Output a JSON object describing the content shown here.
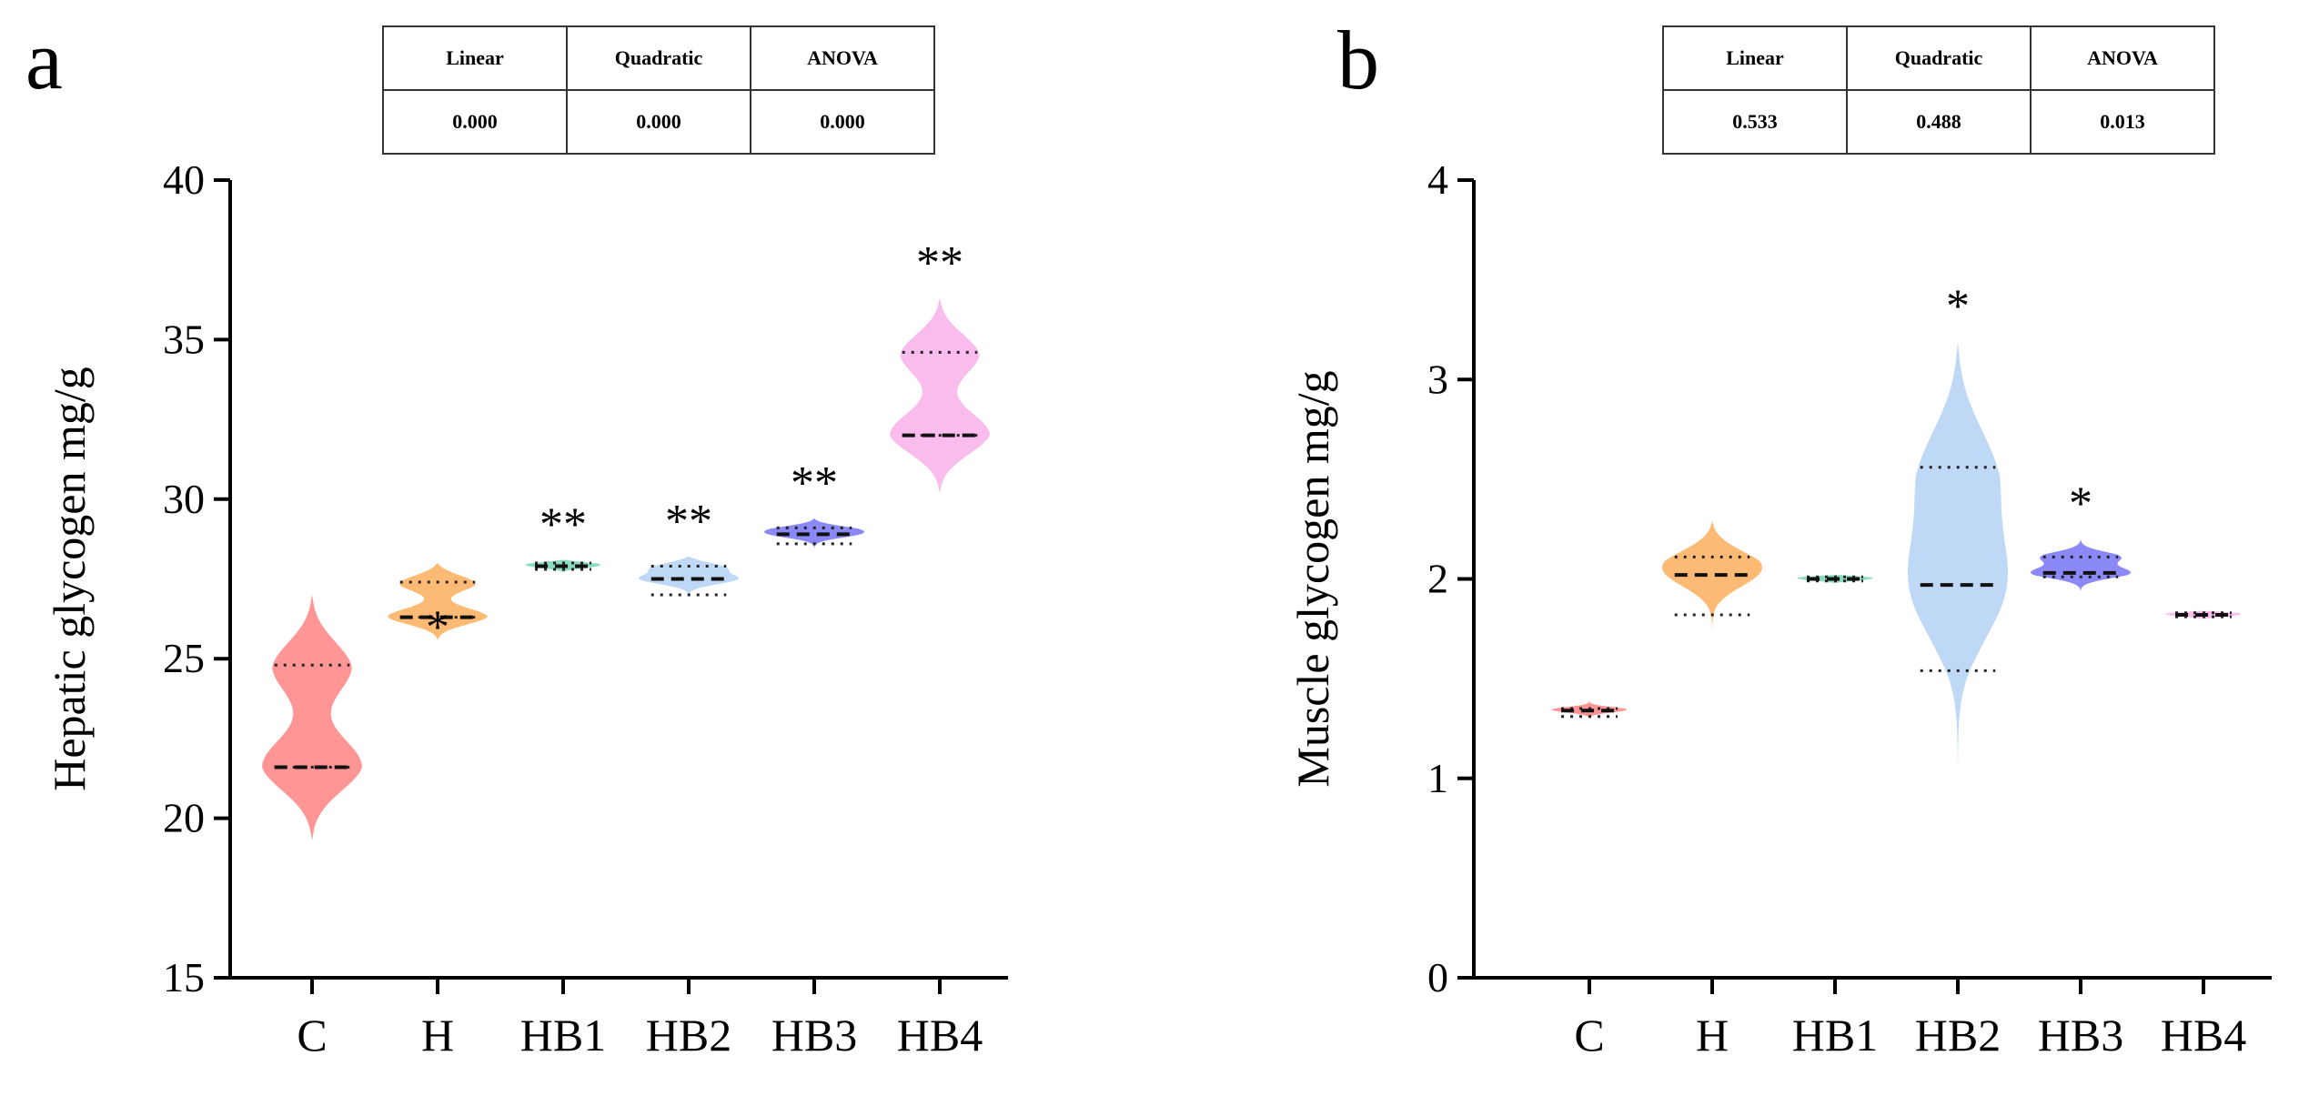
{
  "colors": {
    "C": "#ff8a8a",
    "H": "#fdb366",
    "HB1": "#7fd6ba",
    "HB2": "#b7d4f5",
    "HB3": "#7d7cf6",
    "HB4": "#f9b5ea",
    "axis": "#000000"
  },
  "panels": {
    "a": {
      "letter": "a",
      "stats": {
        "headers": [
          "Linear",
          "Quadratic",
          "ANOVA"
        ],
        "values": [
          "0.000",
          "0.000",
          "0.000"
        ]
      }
    },
    "b": {
      "letter": "b",
      "stats": {
        "headers": [
          "Linear",
          "Quadratic",
          "ANOVA"
        ],
        "values": [
          "0.533",
          "0.488",
          "0.013"
        ]
      }
    }
  },
  "chart_data": [
    {
      "type": "violin",
      "title": "",
      "xlabel": "",
      "ylabel": "Hepatic glycogen  mg/g",
      "categories": [
        "C",
        "H",
        "HB1",
        "HB2",
        "HB3",
        "HB4"
      ],
      "ylim": [
        15,
        40
      ],
      "yticks": [
        "15",
        "20",
        "25",
        "30",
        "35",
        "40"
      ],
      "violins": [
        {
          "group": "C",
          "min": 19.3,
          "max": 27.0,
          "median": 21.6,
          "q1": 21.6,
          "q3": 24.8,
          "significance": ""
        },
        {
          "group": "H",
          "min": 25.6,
          "max": 28.0,
          "median": 26.3,
          "q1": 26.3,
          "q3": 27.4,
          "significance": "*"
        },
        {
          "group": "HB1",
          "min": 27.7,
          "max": 28.1,
          "median": 27.9,
          "q1": 27.8,
          "q3": 28.0,
          "significance": "**"
        },
        {
          "group": "HB2",
          "min": 26.8,
          "max": 28.2,
          "median": 27.5,
          "q1": 27.0,
          "q3": 27.9,
          "significance": "**"
        },
        {
          "group": "HB3",
          "min": 28.3,
          "max": 29.4,
          "median": 28.9,
          "q1": 28.6,
          "q3": 29.1,
          "significance": "**"
        },
        {
          "group": "HB4",
          "min": 30.2,
          "max": 36.3,
          "median": 32.0,
          "q1": 32.0,
          "q3": 34.6,
          "significance": "**"
        }
      ]
    },
    {
      "type": "violin",
      "title": "",
      "xlabel": "",
      "ylabel": "Muscle glycogen  mg/g",
      "categories": [
        "C",
        "H",
        "HB1",
        "HB2",
        "HB3",
        "HB4"
      ],
      "ylim": [
        0,
        4
      ],
      "yticks": [
        "0",
        "1",
        "2",
        "3",
        "4"
      ],
      "violins": [
        {
          "group": "C",
          "min": 1.28,
          "max": 1.39,
          "median": 1.34,
          "q1": 1.31,
          "q3": 1.35,
          "significance": ""
        },
        {
          "group": "H",
          "min": 1.62,
          "max": 2.29,
          "median": 2.02,
          "q1": 1.82,
          "q3": 2.11,
          "significance": ""
        },
        {
          "group": "HB1",
          "min": 1.98,
          "max": 2.02,
          "median": 2.0,
          "q1": 1.99,
          "q3": 2.01,
          "significance": ""
        },
        {
          "group": "HB2",
          "min": 0.93,
          "max": 3.19,
          "median": 1.97,
          "q1": 1.54,
          "q3": 2.56,
          "significance": "*"
        },
        {
          "group": "HB3",
          "min": 1.94,
          "max": 2.2,
          "median": 2.03,
          "q1": 2.01,
          "q3": 2.11,
          "significance": "*"
        },
        {
          "group": "HB4",
          "min": 1.8,
          "max": 1.84,
          "median": 1.82,
          "q1": 1.81,
          "q3": 1.83,
          "significance": ""
        }
      ]
    }
  ]
}
